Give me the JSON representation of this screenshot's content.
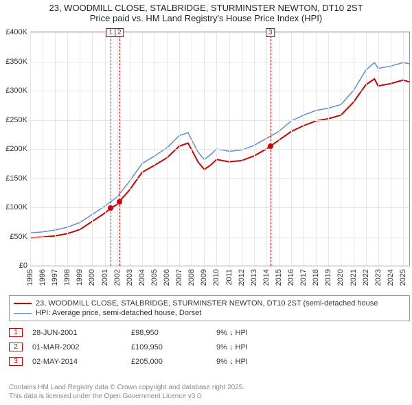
{
  "title": {
    "line1": "23, WOODMILL CLOSE, STALBRIDGE, STURMINSTER NEWTON, DT10 2ST",
    "line2": "Price paid vs. HM Land Registry's House Price Index (HPI)",
    "fontsize": 13,
    "color": "#222222"
  },
  "chart": {
    "background": "#ffffff",
    "grid_color": "#e6e6e6",
    "axis_color": "#999999",
    "tick_fontsize": 11,
    "tick_color": "#333333",
    "x": {
      "min": 1995,
      "max": 2025.5,
      "ticks": [
        1995,
        1996,
        1997,
        1998,
        1999,
        2000,
        2001,
        2002,
        2003,
        2004,
        2005,
        2006,
        2007,
        2008,
        2009,
        2010,
        2011,
        2012,
        2013,
        2014,
        2015,
        2016,
        2017,
        2018,
        2019,
        2020,
        2021,
        2022,
        2023,
        2024,
        2025
      ]
    },
    "y": {
      "min": 0,
      "max": 400000,
      "ticks": [
        {
          "v": 0,
          "label": "£0"
        },
        {
          "v": 50000,
          "label": "£50K"
        },
        {
          "v": 100000,
          "label": "£100K"
        },
        {
          "v": 150000,
          "label": "£150K"
        },
        {
          "v": 200000,
          "label": "£200K"
        },
        {
          "v": 250000,
          "label": "£250K"
        },
        {
          "v": 300000,
          "label": "£300K"
        },
        {
          "v": 350000,
          "label": "£350K"
        },
        {
          "v": 400000,
          "label": "£400K"
        }
      ]
    },
    "series": [
      {
        "name": "23, WOODMILL CLOSE, STALBRIDGE, STURMINSTER NEWTON, DT10 2ST (semi-detached house",
        "color": "#cc0000",
        "width": 2,
        "points": [
          [
            1995,
            48000
          ],
          [
            1996,
            49000
          ],
          [
            1997,
            51000
          ],
          [
            1998,
            55000
          ],
          [
            1999,
            62000
          ],
          [
            2000,
            76000
          ],
          [
            2001,
            90000
          ],
          [
            2001.5,
            98950
          ],
          [
            2002,
            105000
          ],
          [
            2002.17,
            109950
          ],
          [
            2003,
            130000
          ],
          [
            2004,
            160000
          ],
          [
            2005,
            172000
          ],
          [
            2006,
            185000
          ],
          [
            2007,
            205000
          ],
          [
            2007.7,
            210000
          ],
          [
            2008,
            198000
          ],
          [
            2008.5,
            178000
          ],
          [
            2009,
            165000
          ],
          [
            2009.5,
            172000
          ],
          [
            2010,
            182000
          ],
          [
            2011,
            178000
          ],
          [
            2012,
            180000
          ],
          [
            2013,
            188000
          ],
          [
            2014,
            200000
          ],
          [
            2014.33,
            205000
          ],
          [
            2015,
            215000
          ],
          [
            2016,
            230000
          ],
          [
            2017,
            240000
          ],
          [
            2018,
            248000
          ],
          [
            2019,
            252000
          ],
          [
            2020,
            258000
          ],
          [
            2021,
            280000
          ],
          [
            2022,
            310000
          ],
          [
            2022.7,
            320000
          ],
          [
            2023,
            308000
          ],
          [
            2024,
            312000
          ],
          [
            2025,
            318000
          ],
          [
            2025.5,
            315000
          ]
        ]
      },
      {
        "name": "HPI: Average price, semi-detached house, Dorset",
        "color": "#5b8fd6",
        "width": 1.5,
        "points": [
          [
            1995,
            56000
          ],
          [
            1996,
            58000
          ],
          [
            1997,
            61000
          ],
          [
            1998,
            66000
          ],
          [
            1999,
            74000
          ],
          [
            2000,
            88000
          ],
          [
            2001,
            102000
          ],
          [
            2002,
            118000
          ],
          [
            2003,
            145000
          ],
          [
            2004,
            175000
          ],
          [
            2005,
            188000
          ],
          [
            2006,
            202000
          ],
          [
            2007,
            223000
          ],
          [
            2007.7,
            228000
          ],
          [
            2008,
            215000
          ],
          [
            2008.5,
            195000
          ],
          [
            2009,
            182000
          ],
          [
            2009.5,
            190000
          ],
          [
            2010,
            200000
          ],
          [
            2011,
            196000
          ],
          [
            2012,
            198000
          ],
          [
            2013,
            206000
          ],
          [
            2014,
            218000
          ],
          [
            2015,
            230000
          ],
          [
            2016,
            248000
          ],
          [
            2017,
            258000
          ],
          [
            2018,
            266000
          ],
          [
            2019,
            270000
          ],
          [
            2020,
            276000
          ],
          [
            2021,
            300000
          ],
          [
            2022,
            335000
          ],
          [
            2022.7,
            348000
          ],
          [
            2023,
            338000
          ],
          [
            2024,
            342000
          ],
          [
            2025,
            348000
          ],
          [
            2025.5,
            346000
          ]
        ]
      }
    ],
    "markers": [
      {
        "n": "1",
        "x": 2001.49,
        "y": 98950
      },
      {
        "n": "2",
        "x": 2002.17,
        "y": 109950
      },
      {
        "n": "3",
        "x": 2014.33,
        "y": 205000
      }
    ]
  },
  "legend": {
    "border_color": "#999999",
    "fontsize": 11,
    "items": [
      {
        "color": "#cc0000",
        "width": 2,
        "label": "23, WOODMILL CLOSE, STALBRIDGE, STURMINSTER NEWTON, DT10 2ST (semi-detached house"
      },
      {
        "color": "#5b8fd6",
        "width": 1.5,
        "label": "HPI: Average price, semi-detached house, Dorset"
      }
    ]
  },
  "sales": [
    {
      "n": "1",
      "date": "28-JUN-2001",
      "price": "£98,950",
      "pct": "9%",
      "dir": "↓",
      "suffix": "HPI"
    },
    {
      "n": "2",
      "date": "01-MAR-2002",
      "price": "£109,950",
      "pct": "9%",
      "dir": "↓",
      "suffix": "HPI"
    },
    {
      "n": "3",
      "date": "02-MAY-2014",
      "price": "£205,000",
      "pct": "9%",
      "dir": "↓",
      "suffix": "HPI"
    }
  ],
  "footer": {
    "line1": "Contains HM Land Registry data © Crown copyright and database right 2025.",
    "line2": "This data is licensed under the Open Government Licence v3.0.",
    "color": "#888888",
    "fontsize": 10
  }
}
